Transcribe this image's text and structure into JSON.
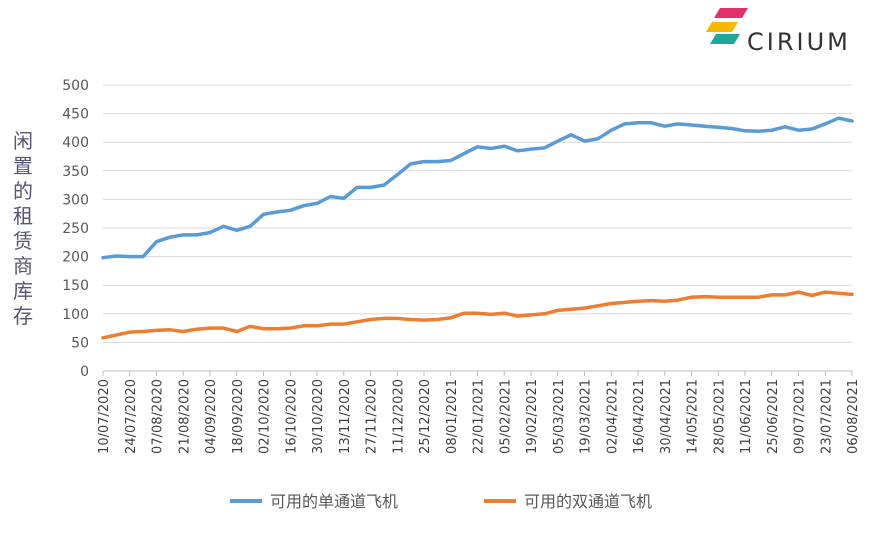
{
  "brand": {
    "name": "CIRIUM",
    "colors": {
      "magenta": "#e2306c",
      "yellow": "#f5b800",
      "teal": "#1fa59a",
      "dark": "#2f2f38"
    }
  },
  "chart_data": {
    "type": "line",
    "ylabel": "闲置的租赁商库存",
    "ylim": [
      0,
      500
    ],
    "yticks": [
      0,
      50,
      100,
      150,
      200,
      250,
      300,
      350,
      400,
      450,
      500
    ],
    "grid": true,
    "legend_position": "bottom",
    "xtick_labels": [
      "10/07/2020",
      "24/07/2020",
      "07/08/2020",
      "21/08/2020",
      "04/09/2020",
      "18/09/2020",
      "02/10/2020",
      "16/10/2020",
      "30/10/2020",
      "13/11/2020",
      "27/11/2020",
      "11/12/2020",
      "25/12/2020",
      "08/01/2021",
      "22/01/2021",
      "05/02/2021",
      "19/02/2021",
      "05/03/2021",
      "19/03/2021",
      "02/04/2021",
      "16/04/2021",
      "30/04/2021",
      "14/05/2021",
      "28/05/2021",
      "11/06/2021",
      "25/06/2021",
      "09/07/2021",
      "23/07/2021",
      "06/08/2021"
    ],
    "series": [
      {
        "name": "可用的单通道飞机",
        "color": "#5b9bd5",
        "values": [
          198,
          201,
          200,
          200,
          226,
          234,
          238,
          238,
          242,
          253,
          246,
          253,
          274,
          278,
          281,
          289,
          293,
          305,
          302,
          321,
          321,
          325,
          343,
          362,
          366,
          366,
          368,
          380,
          392,
          389,
          393,
          385,
          388,
          390,
          402,
          413,
          402,
          406,
          421,
          432,
          434,
          434,
          428,
          432,
          430,
          428,
          426,
          424,
          420,
          419,
          421,
          427,
          421,
          423,
          432,
          442,
          437
        ]
      },
      {
        "name": "可用的双通道飞机",
        "color": "#ed7d31",
        "values": [
          58,
          63,
          68,
          69,
          71,
          72,
          69,
          73,
          75,
          75,
          69,
          78,
          74,
          74,
          75,
          79,
          79,
          82,
          82,
          86,
          90,
          92,
          92,
          90,
          89,
          90,
          93,
          101,
          101,
          99,
          101,
          96,
          98,
          100,
          106,
          108,
          110,
          114,
          118,
          120,
          122,
          123,
          122,
          124,
          129,
          130,
          129,
          129,
          129,
          129,
          133,
          133,
          138,
          132,
          138,
          136,
          134
        ]
      }
    ]
  }
}
